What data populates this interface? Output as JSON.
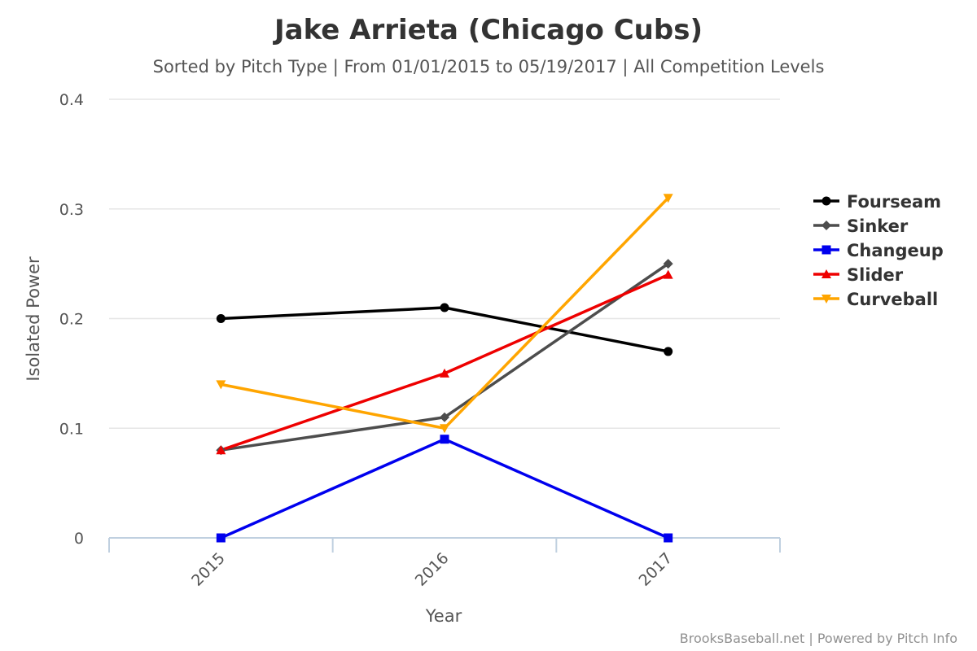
{
  "chart_data": {
    "type": "line",
    "title": "Jake Arrieta (Chicago Cubs)",
    "subtitle": "Sorted by Pitch Type | From 01/01/2015 to 05/19/2017 | All Competition Levels",
    "xlabel": "Year",
    "ylabel": "Isolated Power",
    "categories": [
      "2015",
      "2016",
      "2017"
    ],
    "ylim": [
      0,
      0.4
    ],
    "yticks": [
      "0",
      "0.1",
      "0.2",
      "0.3",
      "0.4"
    ],
    "grid": true,
    "legend_position": "right",
    "series": [
      {
        "name": "Fourseam",
        "values": [
          0.2,
          0.21,
          0.17
        ],
        "color": "#000000",
        "marker": "circle"
      },
      {
        "name": "Sinker",
        "values": [
          0.08,
          0.11,
          0.25
        ],
        "color": "#4d4d4d",
        "marker": "diamond"
      },
      {
        "name": "Changeup",
        "values": [
          0.0,
          0.09,
          0.0
        ],
        "color": "#0000ee",
        "marker": "square"
      },
      {
        "name": "Slider",
        "values": [
          0.08,
          0.15,
          0.24
        ],
        "color": "#ee0000",
        "marker": "triangle-up"
      },
      {
        "name": "Curveball",
        "values": [
          0.14,
          0.1,
          0.31
        ],
        "color": "#ffa500",
        "marker": "triangle-down"
      }
    ]
  },
  "credits": "BrooksBaseball.net | Powered by Pitch Info"
}
